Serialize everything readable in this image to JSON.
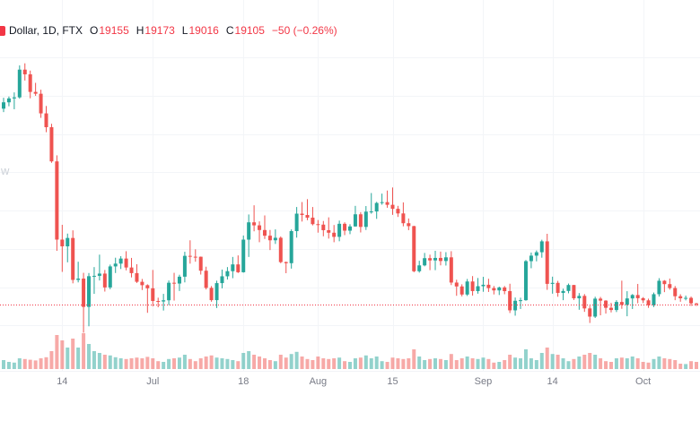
{
  "header": {
    "symbol_text": "Dollar, 1D, FTX",
    "ohlc": {
      "o_label": "O",
      "o": "19155",
      "h_label": "H",
      "h": "19173",
      "l_label": "L",
      "l": "19016",
      "c_label": "C",
      "c": "19105",
      "change": "−50 (−0.26%)"
    }
  },
  "watermark_fragment": "w",
  "colors": {
    "up": "#26a69a",
    "down": "#ef5350",
    "vol_up": "rgba(38,166,154,0.5)",
    "vol_down": "rgba(239,83,80,0.5)",
    "grid": "#f3f5f8",
    "axis_text": "#787b86",
    "legend_text": "#131722",
    "legend_value": "#f23645",
    "last_price_line": "#f23645"
  },
  "x_axis": {
    "ticks": [
      {
        "label": "14",
        "index": 11
      },
      {
        "label": "Jul",
        "index": 28
      },
      {
        "label": "18",
        "index": 45
      },
      {
        "label": "Aug",
        "index": 59
      },
      {
        "label": "15",
        "index": 73
      },
      {
        "label": "Sep",
        "index": 90
      },
      {
        "label": "14",
        "index": 103
      },
      {
        "label": "Oct",
        "index": 120
      }
    ]
  },
  "chart_data": {
    "type": "candlestick+volume",
    "title": "Dollar, 1D, FTX",
    "interval": "1D",
    "tick_labels": [
      "14",
      "Jul",
      "18",
      "Aug",
      "15",
      "Sep",
      "14",
      "Oct"
    ],
    "last": {
      "open": 19155,
      "high": 19173,
      "low": 19016,
      "close": 19105,
      "change_abs": -50,
      "change_pct": -0.26
    },
    "price_range": [
      17500,
      32200
    ],
    "grid_step": 2000,
    "candles": [
      [
        29330,
        29900,
        29150,
        29662
      ],
      [
        29662,
        29965,
        29455,
        29865
      ],
      [
        29865,
        30180,
        29300,
        29920
      ],
      [
        29920,
        31590,
        29850,
        31370
      ],
      [
        31370,
        31700,
        30800,
        31125
      ],
      [
        31125,
        31320,
        29870,
        30205
      ],
      [
        30205,
        30680,
        30000,
        30110
      ],
      [
        30110,
        30320,
        28850,
        29083
      ],
      [
        29083,
        29470,
        28100,
        28360
      ],
      [
        28360,
        28540,
        26500,
        26574
      ],
      [
        26574,
        26890,
        21900,
        22487
      ],
      [
        22487,
        23260,
        20800,
        22135
      ],
      [
        22135,
        22800,
        21300,
        22572
      ],
      [
        22572,
        22970,
        20200,
        20381
      ],
      [
        20381,
        21330,
        20250,
        20448
      ],
      [
        20448,
        20750,
        17622,
        18970
      ],
      [
        18970,
        20740,
        17956,
        20574
      ],
      [
        20574,
        21050,
        19650,
        20593
      ],
      [
        20593,
        21700,
        20350,
        20710
      ],
      [
        20710,
        20900,
        19770,
        19987
      ],
      [
        19987,
        21180,
        19890,
        21085
      ],
      [
        21085,
        21540,
        20740,
        21231
      ],
      [
        21231,
        21620,
        20950,
        21496
      ],
      [
        21496,
        21880,
        20880,
        21028
      ],
      [
        21028,
        21530,
        20510,
        20735
      ],
      [
        20735,
        21200,
        20220,
        20281
      ],
      [
        20281,
        20430,
        19850,
        20104
      ],
      [
        20104,
        20150,
        18660,
        19942
      ],
      [
        19942,
        20900,
        19000,
        19279
      ],
      [
        19279,
        19450,
        18950,
        19252
      ],
      [
        19252,
        19650,
        18780,
        19315
      ],
      [
        19315,
        20350,
        19060,
        20231
      ],
      [
        20231,
        20750,
        19300,
        20190
      ],
      [
        20190,
        20650,
        19800,
        20548
      ],
      [
        20548,
        21850,
        20250,
        21637
      ],
      [
        21637,
        22450,
        21230,
        21592
      ],
      [
        21592,
        21980,
        21330,
        21591
      ],
      [
        21591,
        21600,
        20660,
        20860
      ],
      [
        20860,
        21070,
        19880,
        19963
      ],
      [
        19963,
        20060,
        19240,
        19323
      ],
      [
        19323,
        20340,
        18910,
        20212
      ],
      [
        20212,
        20920,
        19940,
        20569
      ],
      [
        20569,
        21050,
        20400,
        20836
      ],
      [
        20836,
        21580,
        20470,
        21190
      ],
      [
        21190,
        21660,
        20740,
        20781
      ],
      [
        20781,
        22700,
        20760,
        22485
      ],
      [
        22485,
        23800,
        21580,
        23389
      ],
      [
        23389,
        24280,
        22920,
        23231
      ],
      [
        23231,
        23440,
        22350,
        22987
      ],
      [
        22987,
        23750,
        22520,
        22690
      ],
      [
        22690,
        22990,
        21940,
        22451
      ],
      [
        22451,
        23020,
        22260,
        22582
      ],
      [
        22582,
        22650,
        21250,
        21311
      ],
      [
        21311,
        21340,
        20730,
        21254
      ],
      [
        21254,
        23020,
        20970,
        22930
      ],
      [
        22930,
        24190,
        22590,
        23843
      ],
      [
        23843,
        24450,
        23430,
        23773
      ],
      [
        23773,
        24600,
        23500,
        23634
      ],
      [
        23634,
        24190,
        23230,
        23293
      ],
      [
        23293,
        23510,
        22850,
        23269
      ],
      [
        23269,
        23460,
        22660,
        22978
      ],
      [
        22978,
        23650,
        22540,
        22846
      ],
      [
        22846,
        23250,
        22350,
        22630
      ],
      [
        22630,
        23480,
        22400,
        23312
      ],
      [
        23312,
        23390,
        22720,
        22954
      ],
      [
        22954,
        23290,
        22770,
        23175
      ],
      [
        23175,
        24250,
        23160,
        23809
      ],
      [
        23809,
        23920,
        22860,
        23150
      ],
      [
        23150,
        24240,
        22990,
        23948
      ],
      [
        23948,
        24920,
        23840,
        23957
      ],
      [
        23957,
        24460,
        23570,
        24402
      ],
      [
        24402,
        24890,
        24310,
        24444
      ],
      [
        24444,
        25050,
        24150,
        24305
      ],
      [
        24305,
        25210,
        23780,
        24095
      ],
      [
        24095,
        24250,
        23670,
        23854
      ],
      [
        23854,
        24430,
        23180,
        23342
      ],
      [
        23342,
        23590,
        22980,
        23191
      ],
      [
        23191,
        23210,
        20780,
        20834
      ],
      [
        20834,
        21380,
        20760,
        21139
      ],
      [
        21139,
        21790,
        21090,
        21516
      ],
      [
        21516,
        21700,
        20890,
        21398
      ],
      [
        21398,
        21900,
        20890,
        21529
      ],
      [
        21529,
        21860,
        21140,
        21368
      ],
      [
        21368,
        21830,
        21130,
        21559
      ],
      [
        21559,
        21880,
        20110,
        20241
      ],
      [
        20241,
        20390,
        19550,
        20038
      ],
      [
        20038,
        20150,
        19520,
        19616
      ],
      [
        19616,
        20430,
        19540,
        20297
      ],
      [
        20297,
        20580,
        19560,
        19796
      ],
      [
        19796,
        20480,
        19660,
        20050
      ],
      [
        20050,
        20540,
        19760,
        20127
      ],
      [
        20127,
        20440,
        19750,
        19952
      ],
      [
        19952,
        20060,
        19620,
        19832
      ],
      [
        19832,
        20030,
        19590,
        19986
      ],
      [
        19986,
        20060,
        19630,
        19794
      ],
      [
        19794,
        20180,
        18650,
        18790
      ],
      [
        18790,
        19460,
        18510,
        19290
      ],
      [
        19290,
        19450,
        18860,
        19320
      ],
      [
        19320,
        21420,
        19290,
        21360
      ],
      [
        21360,
        21810,
        20990,
        21648
      ],
      [
        21648,
        21920,
        21350,
        21826
      ],
      [
        21826,
        22480,
        21540,
        22395
      ],
      [
        22395,
        22790,
        19860,
        20173
      ],
      [
        20173,
        20550,
        19660,
        20226
      ],
      [
        20226,
        20330,
        19500,
        19701
      ],
      [
        19701,
        19920,
        19320,
        19802
      ],
      [
        19802,
        20190,
        19680,
        20113
      ],
      [
        20113,
        20120,
        19330,
        19419
      ],
      [
        19419,
        19690,
        18820,
        19544
      ],
      [
        19544,
        19640,
        18710,
        18890
      ],
      [
        18890,
        19030,
        18130,
        18461
      ],
      [
        18461,
        19500,
        18390,
        19401
      ],
      [
        19401,
        19490,
        18530,
        19297
      ],
      [
        19297,
        19320,
        18620,
        18922
      ],
      [
        18922,
        19180,
        18680,
        18807
      ],
      [
        18807,
        19320,
        18700,
        19227
      ],
      [
        19227,
        20340,
        18870,
        19079
      ],
      [
        19079,
        19790,
        18480,
        19412
      ],
      [
        19412,
        19640,
        18860,
        19590
      ],
      [
        19590,
        20170,
        19160,
        19424
      ],
      [
        19424,
        19480,
        19170,
        19312
      ],
      [
        19312,
        19400,
        18920,
        19059
      ],
      [
        19059,
        19720,
        18960,
        19633
      ],
      [
        19633,
        20470,
        19510,
        20336
      ],
      [
        20336,
        20370,
        19740,
        20160
      ],
      [
        20160,
        20450,
        19870,
        19955
      ],
      [
        19955,
        20060,
        19320,
        19527
      ],
      [
        19527,
        19630,
        19240,
        19419
      ],
      [
        19419,
        19560,
        19310,
        19441
      ],
      [
        19441,
        19510,
        19020,
        19155
      ],
      [
        19155,
        19173,
        19016,
        19105
      ]
    ],
    "volumes": [
      0.25,
      0.2,
      0.18,
      0.3,
      0.28,
      0.26,
      0.24,
      0.3,
      0.33,
      0.5,
      0.95,
      0.8,
      0.6,
      0.85,
      0.6,
      1.0,
      0.7,
      0.5,
      0.45,
      0.4,
      0.38,
      0.33,
      0.3,
      0.28,
      0.3,
      0.32,
      0.3,
      0.34,
      0.3,
      0.22,
      0.2,
      0.28,
      0.3,
      0.32,
      0.4,
      0.28,
      0.22,
      0.3,
      0.35,
      0.38,
      0.32,
      0.3,
      0.28,
      0.25,
      0.22,
      0.45,
      0.5,
      0.4,
      0.35,
      0.3,
      0.25,
      0.22,
      0.4,
      0.32,
      0.42,
      0.48,
      0.35,
      0.28,
      0.25,
      0.35,
      0.3,
      0.28,
      0.3,
      0.32,
      0.22,
      0.2,
      0.3,
      0.32,
      0.38,
      0.3,
      0.35,
      0.22,
      0.2,
      0.32,
      0.3,
      0.28,
      0.3,
      0.55,
      0.35,
      0.25,
      0.28,
      0.3,
      0.28,
      0.25,
      0.42,
      0.25,
      0.3,
      0.35,
      0.3,
      0.28,
      0.32,
      0.28,
      0.18,
      0.2,
      0.25,
      0.4,
      0.32,
      0.3,
      0.55,
      0.3,
      0.25,
      0.45,
      0.6,
      0.42,
      0.4,
      0.3,
      0.22,
      0.28,
      0.35,
      0.4,
      0.45,
      0.4,
      0.3,
      0.22,
      0.2,
      0.3,
      0.32,
      0.3,
      0.35,
      0.3,
      0.2,
      0.18,
      0.28,
      0.35,
      0.3,
      0.28,
      0.25,
      0.15,
      0.14,
      0.22,
      0.2
    ]
  }
}
